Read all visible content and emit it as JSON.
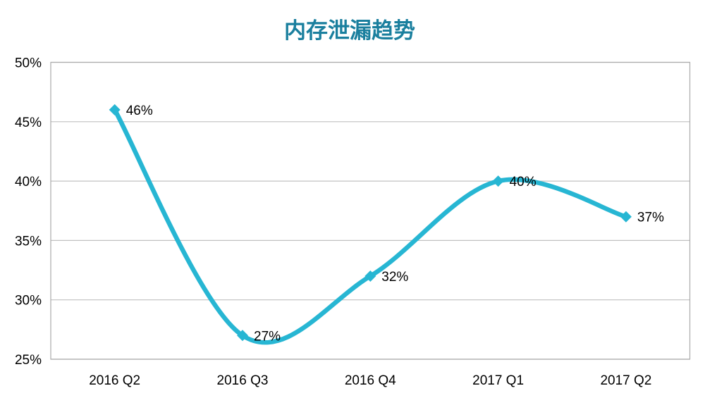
{
  "chart_data": {
    "type": "line",
    "title": "内存泄漏趋势",
    "categories": [
      "2016 Q2",
      "2016 Q3",
      "2016 Q4",
      "2017 Q1",
      "2017 Q2"
    ],
    "series": [
      {
        "name": "内存泄漏趋势",
        "values": [
          46,
          27,
          32,
          40,
          37
        ],
        "data_labels": [
          "46%",
          "27%",
          "32%",
          "40%",
          "37%"
        ]
      }
    ],
    "xlabel": "",
    "ylabel": "",
    "ylim": [
      25,
      50
    ],
    "ytick_step": 5,
    "ytick_labels": [
      "25%",
      "30%",
      "35%",
      "40%",
      "45%",
      "50%"
    ],
    "grid": true,
    "legend_position": "none",
    "smooth": true,
    "marker": "diamond",
    "colors": {
      "line": "#27b6d3",
      "marker": "#27b6d3",
      "title": "#1a7f9e",
      "gridline": "#c0c0c0",
      "plot_border": "#ababab",
      "label_text": "#000000",
      "background": "#ffffff"
    }
  }
}
